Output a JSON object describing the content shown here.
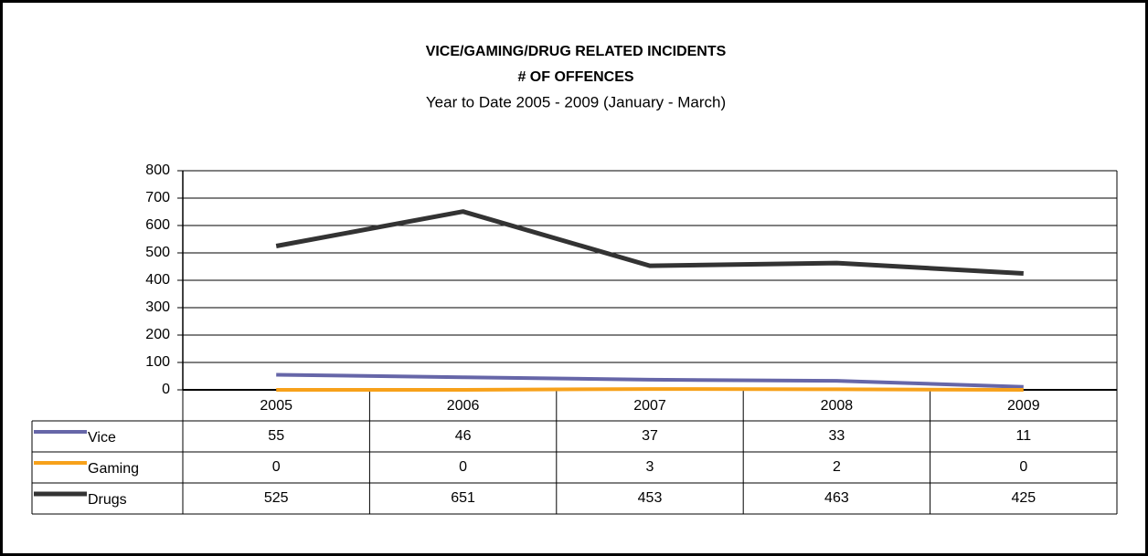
{
  "chart_data": {
    "type": "line",
    "title": "VICE/GAMING/DRUG RELATED INCIDENTS",
    "title2": "# OF OFFENCES",
    "subtitle": "Year to Date 2005 - 2009 (January - March)",
    "categories": [
      "2005",
      "2006",
      "2007",
      "2008",
      "2009"
    ],
    "series": [
      {
        "name": "Vice",
        "color": "#6666a8",
        "values": [
          55,
          46,
          37,
          33,
          11
        ]
      },
      {
        "name": "Gaming",
        "color": "#f7a11a",
        "values": [
          0,
          0,
          3,
          2,
          0
        ]
      },
      {
        "name": "Drugs",
        "color": "#333333",
        "values": [
          525,
          651,
          453,
          463,
          425
        ]
      }
    ],
    "ylim": [
      0,
      800
    ],
    "yticks": [
      0,
      100,
      200,
      300,
      400,
      500,
      600,
      700,
      800
    ],
    "grid": true
  }
}
